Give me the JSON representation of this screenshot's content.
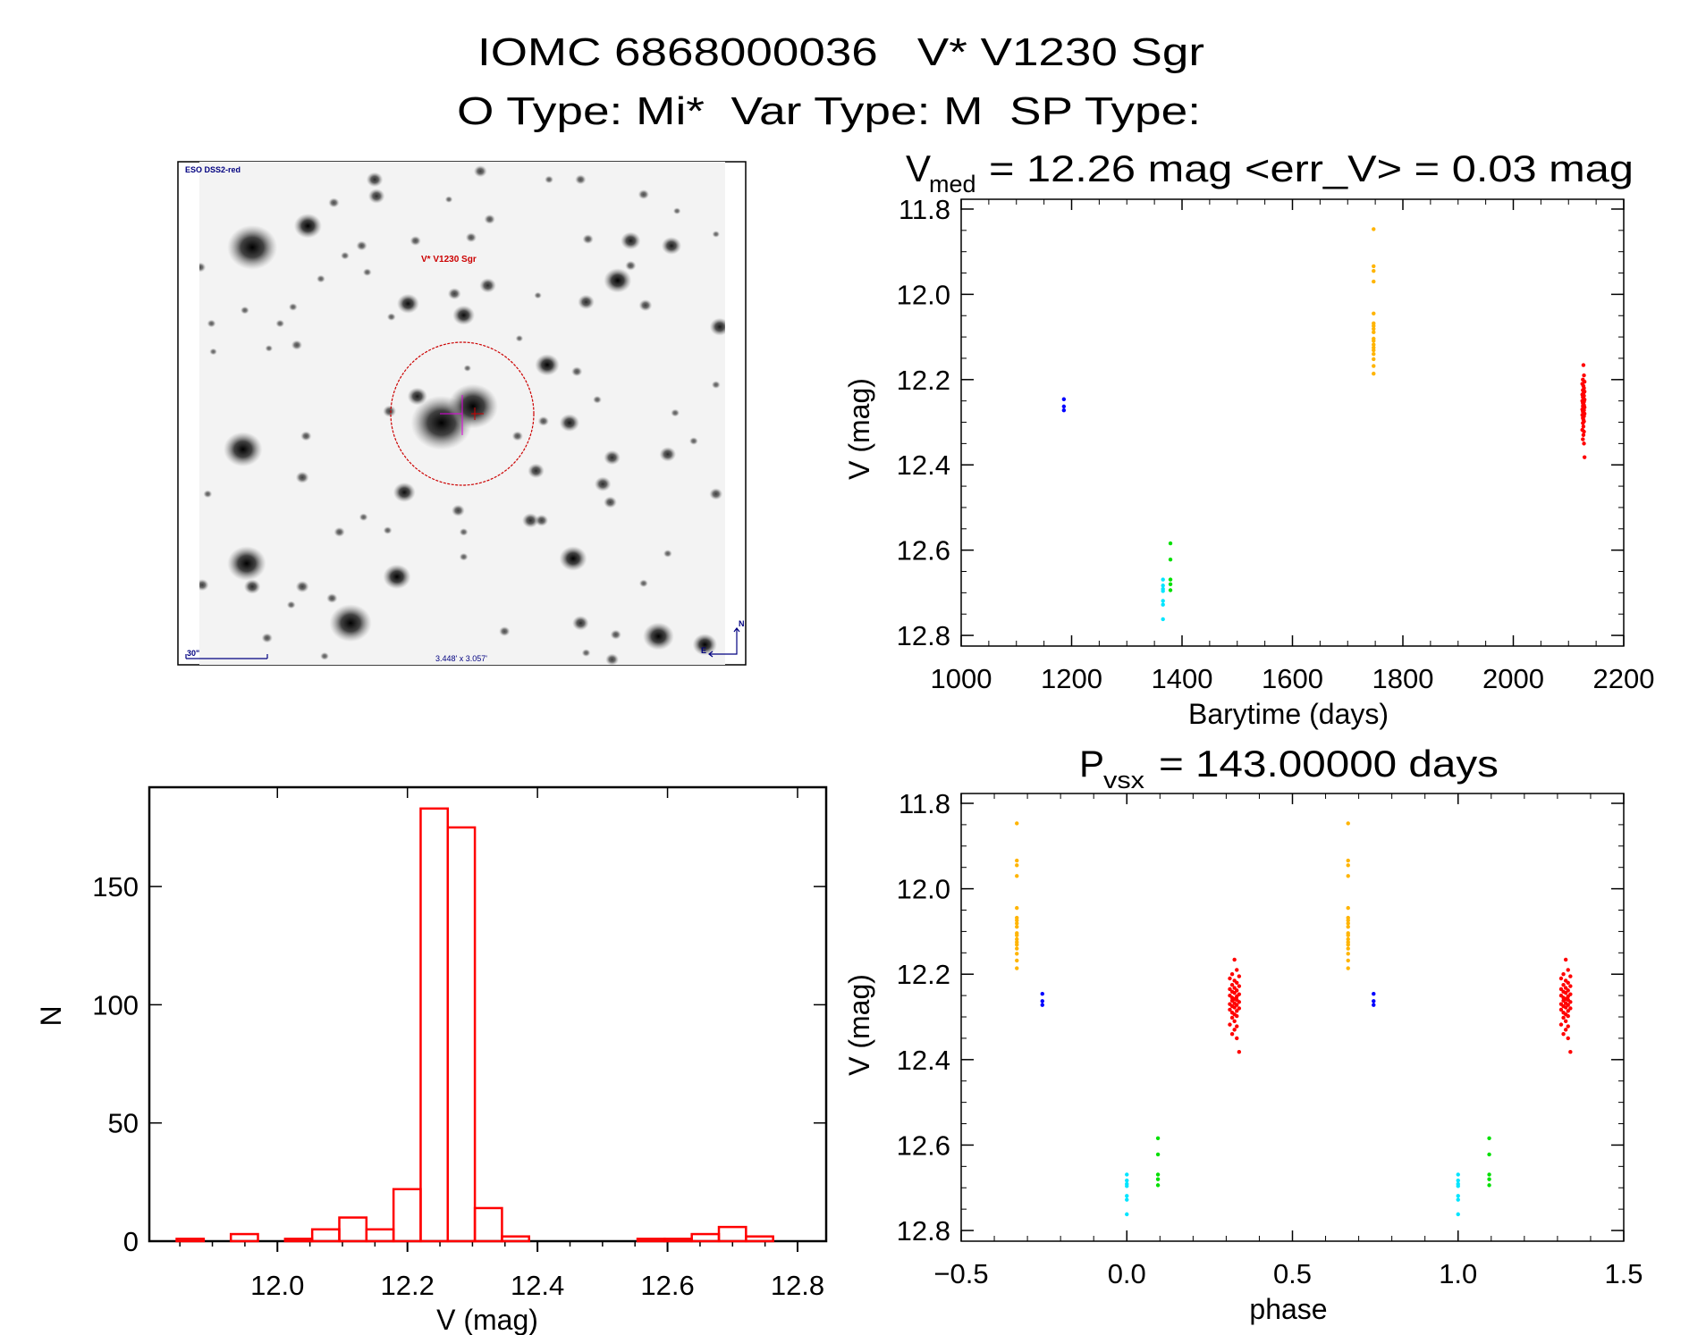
{
  "header": {
    "line1": "IOMC 6868000036   V* V1230 Sgr",
    "line2": "O Type: Mi*  Var Type: M  SP Type:"
  },
  "finder_image": {
    "survey_label": "ESO DSS2-red",
    "target_label": "V* V1230 Sgr",
    "scale_bar_label": "30\"",
    "field_size_label": "3.448' x 3.057'",
    "compass_north": "N",
    "compass_east": "E",
    "colors": {
      "target": "#cc0000",
      "annotation": "#000080",
      "crosshair": "#e000e0"
    }
  },
  "chart_data": [
    {
      "type": "histogram",
      "xlabel": "V (mag)",
      "ylabel": "N",
      "xlim": [
        11.803,
        12.844
      ],
      "ylim": [
        0,
        192
      ],
      "x_ticks": [
        12.0,
        12.2,
        12.4,
        12.6,
        12.8
      ],
      "x_tick_labels": [
        "12.0",
        "12.2",
        "12.4",
        "12.6",
        "12.8"
      ],
      "x_minor_step": 0.05,
      "y_ticks": [
        0,
        50,
        100,
        150
      ],
      "y_tick_labels": [
        "0",
        "50",
        "100",
        "150"
      ],
      "bin_start": 11.845,
      "bin_width": 0.0417,
      "counts": [
        1,
        0,
        3,
        0,
        1,
        5,
        10,
        5,
        22,
        183,
        175,
        14,
        2,
        0,
        0,
        0,
        0,
        1,
        1,
        3,
        6,
        2
      ],
      "color": "#ff0000"
    },
    {
      "type": "scatter",
      "title": {
        "symbol": "V",
        "subscript": "med",
        "text": "= 12.26 mag <err_V> = 0.03 mag"
      },
      "xlabel": "Barytime (days)",
      "ylabel": "V (mag)",
      "xlim": [
        1000,
        2200
      ],
      "ylim": [
        11.777,
        12.825
      ],
      "y_inverted": true,
      "x_ticks": [
        1000,
        1200,
        1400,
        1600,
        1800,
        2000,
        2200
      ],
      "x_tick_labels": [
        "1000",
        "1200",
        "1400",
        "1600",
        "1800",
        "2000",
        "2200"
      ],
      "x_minor_step": 50,
      "y_ticks": [
        11.8,
        12.0,
        12.2,
        12.4,
        12.6,
        12.8
      ],
      "y_tick_labels": [
        "11.8",
        "12.0",
        "12.2",
        "12.4",
        "12.6",
        "12.8"
      ],
      "y_minor_step": 0.05
    },
    {
      "type": "scatter",
      "title": {
        "symbol": "P",
        "subscript": "VSX",
        "text": "= 143.00000 days"
      },
      "xlabel": "phase",
      "ylabel": "V (mag)",
      "xlim": [
        -0.5,
        1.5
      ],
      "ylim": [
        11.777,
        12.825
      ],
      "y_inverted": true,
      "x_ticks": [
        -0.5,
        0.0,
        0.5,
        1.0,
        1.5
      ],
      "x_tick_labels": [
        "−0.5",
        "0.0",
        "0.5",
        "1.0",
        "1.5"
      ],
      "x_minor_step": 0.1,
      "y_ticks": [
        11.8,
        12.0,
        12.2,
        12.4,
        12.6,
        12.8
      ],
      "y_tick_labels": [
        "11.8",
        "12.0",
        "12.2",
        "12.4",
        "12.6",
        "12.8"
      ],
      "y_minor_step": 0.05,
      "phase_repeated_cycles": 2
    }
  ],
  "observations": [
    {
      "color": "#0000ff",
      "points": [
        [
          1186,
          12.246,
          -0.255
        ],
        [
          1186,
          12.263,
          -0.255
        ],
        [
          1186,
          12.272,
          -0.255
        ]
      ]
    },
    {
      "color": "#00e5ff",
      "points": [
        [
          1365.5,
          12.669,
          0.0
        ],
        [
          1365.5,
          12.683,
          0.0
        ],
        [
          1365.5,
          12.691,
          0.0
        ],
        [
          1365.5,
          12.696,
          0.0
        ],
        [
          1365.5,
          12.719,
          0.0
        ],
        [
          1365.5,
          12.728,
          0.0
        ],
        [
          1365.5,
          12.762,
          0.0
        ]
      ]
    },
    {
      "color": "#00e000",
      "points": [
        [
          1379,
          12.584,
          0.094
        ],
        [
          1379,
          12.622,
          0.094
        ],
        [
          1379,
          12.669,
          0.094
        ],
        [
          1379,
          12.68,
          0.094
        ],
        [
          1379,
          12.694,
          0.094
        ]
      ]
    },
    {
      "color": "#ffb400",
      "points": [
        [
          1747,
          11.847,
          -0.332
        ],
        [
          1747,
          11.934,
          -0.332
        ],
        [
          1747,
          11.945,
          -0.332
        ],
        [
          1747,
          11.97,
          -0.332
        ],
        [
          1747,
          12.045,
          -0.332
        ],
        [
          1747,
          12.068,
          -0.332
        ],
        [
          1747,
          12.074,
          -0.332
        ],
        [
          1747,
          12.081,
          -0.332
        ],
        [
          1747,
          12.089,
          -0.332
        ],
        [
          1747,
          12.104,
          -0.332
        ],
        [
          1747,
          12.109,
          -0.332
        ],
        [
          1747,
          12.118,
          -0.332
        ],
        [
          1747,
          12.125,
          -0.332
        ],
        [
          1747,
          12.131,
          -0.332
        ],
        [
          1747,
          12.14,
          -0.332
        ],
        [
          1747,
          12.152,
          -0.332
        ],
        [
          1747,
          12.168,
          -0.332
        ],
        [
          1747,
          12.186,
          -0.332
        ]
      ]
    },
    {
      "color": "#ff0000",
      "points": [
        [
          2127,
          12.166,
          0.325
        ],
        [
          2128,
          12.19,
          0.332
        ],
        [
          2126,
          12.2,
          0.318
        ],
        [
          2129,
          12.205,
          0.339
        ],
        [
          2125,
          12.21,
          0.311
        ],
        [
          2127,
          12.215,
          0.325
        ],
        [
          2128,
          12.22,
          0.332
        ],
        [
          2126,
          12.225,
          0.318
        ],
        [
          2129,
          12.228,
          0.339
        ],
        [
          2127,
          12.232,
          0.325
        ],
        [
          2125,
          12.235,
          0.311
        ],
        [
          2128,
          12.238,
          0.332
        ],
        [
          2126,
          12.241,
          0.318
        ],
        [
          2127,
          12.244,
          0.325
        ],
        [
          2129,
          12.247,
          0.339
        ],
        [
          2125,
          12.25,
          0.311
        ],
        [
          2128,
          12.252,
          0.332
        ],
        [
          2126,
          12.255,
          0.318
        ],
        [
          2127,
          12.258,
          0.325
        ],
        [
          2128,
          12.26,
          0.332
        ],
        [
          2126,
          12.262,
          0.318
        ],
        [
          2129,
          12.265,
          0.339
        ],
        [
          2127,
          12.268,
          0.325
        ],
        [
          2125,
          12.27,
          0.311
        ],
        [
          2128,
          12.272,
          0.332
        ],
        [
          2126,
          12.275,
          0.318
        ],
        [
          2127,
          12.278,
          0.325
        ],
        [
          2129,
          12.28,
          0.339
        ],
        [
          2125,
          12.283,
          0.311
        ],
        [
          2128,
          12.286,
          0.332
        ],
        [
          2126,
          12.29,
          0.318
        ],
        [
          2127,
          12.294,
          0.325
        ],
        [
          2128,
          12.298,
          0.332
        ],
        [
          2126,
          12.302,
          0.318
        ],
        [
          2127,
          12.31,
          0.325
        ],
        [
          2125,
          12.318,
          0.311
        ],
        [
          2128,
          12.322,
          0.332
        ],
        [
          2127,
          12.33,
          0.325
        ],
        [
          2126,
          12.34,
          0.318
        ],
        [
          2128,
          12.35,
          0.332
        ],
        [
          2129,
          12.382,
          0.339
        ]
      ]
    }
  ]
}
